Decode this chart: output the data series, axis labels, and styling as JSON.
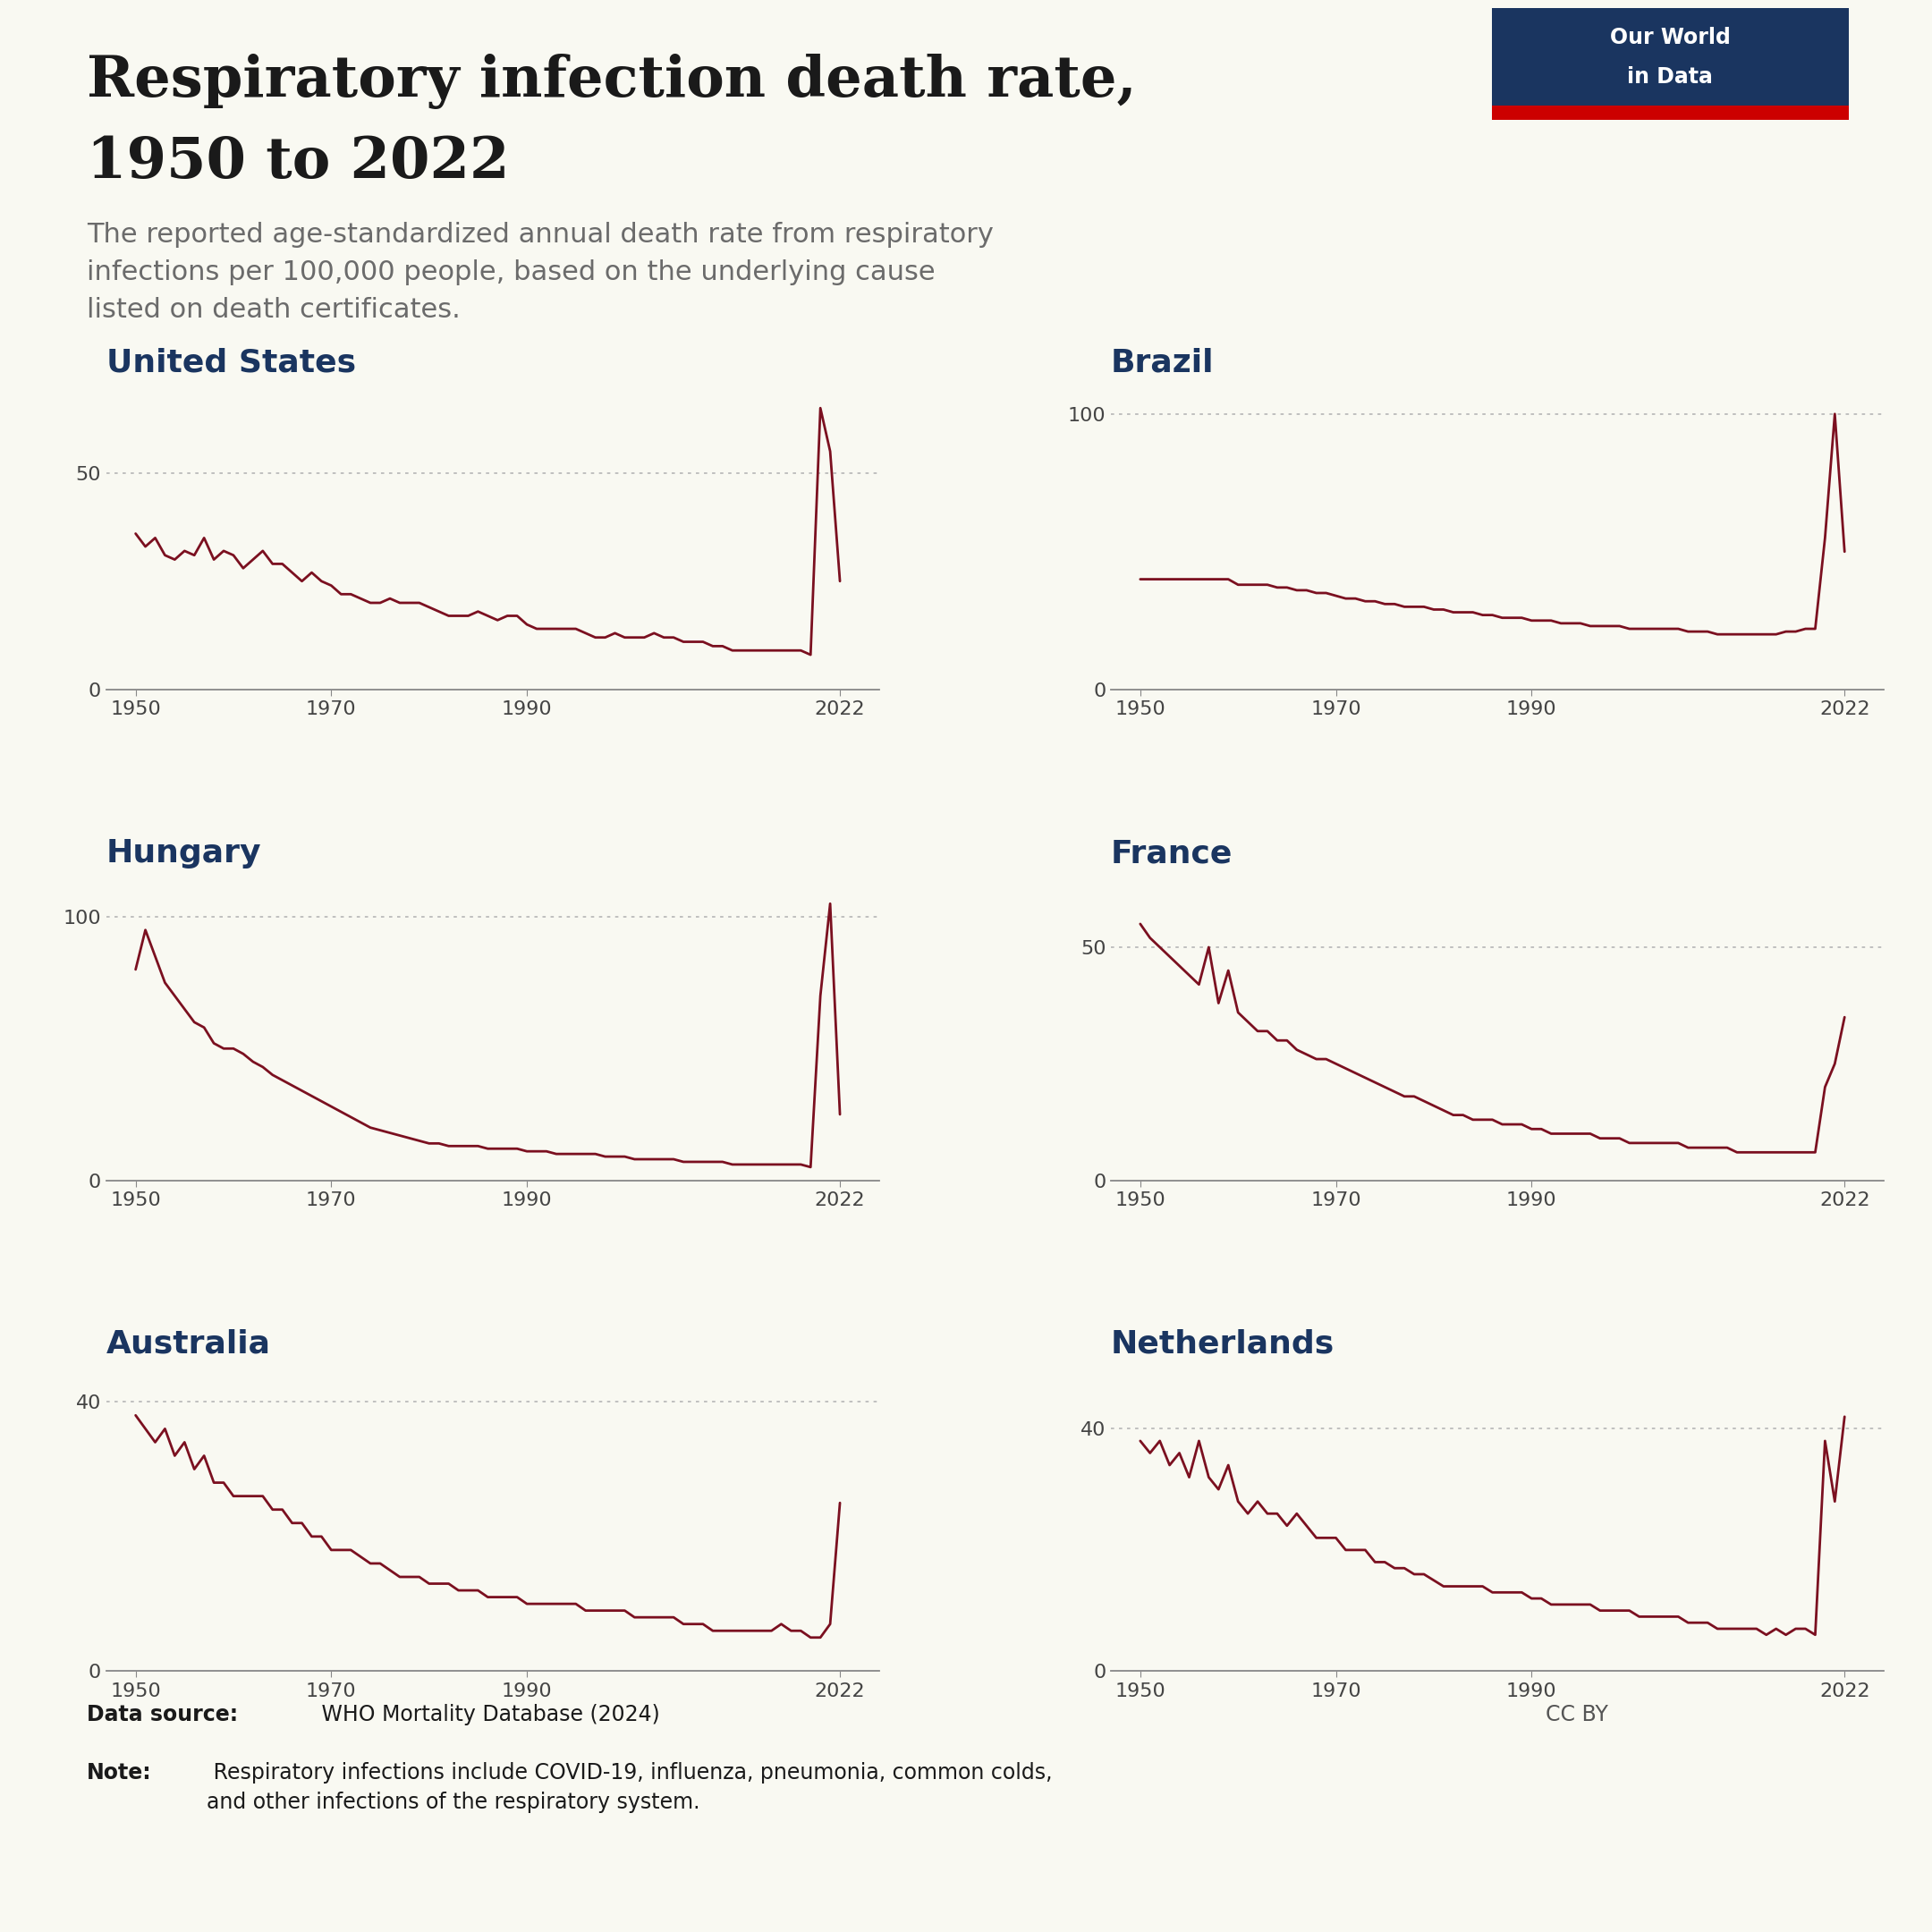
{
  "title_line1": "Respiratory infection death rate,",
  "title_line2": "1950 to 2022",
  "subtitle": "The reported age-standardized annual death rate from respiratory\ninfections per 100,000 people, based on the underlying cause\nlisted on death certificates.",
  "title_color": "#1a1a1a",
  "subtitle_color": "#6b6b6b",
  "country_title_color": "#1a3560",
  "line_color": "#7b1020",
  "axis_color": "#888888",
  "grid_color": "#bbbbbb",
  "background_color": "#f9f9f2",
  "owid_box_bg": "#1a3560",
  "owid_red_line": "#cc0000",
  "source_bold": "Data source:",
  "source_rest": " WHO Mortality Database (2024)",
  "note_bold": "Note:",
  "note_rest": " Respiratory infections include COVID-19, influenza, pneumonia, common colds,\nand other infections of the respiratory system.",
  "ccby_text": "CC BY",
  "countries": [
    "United States",
    "Brazil",
    "Hungary",
    "France",
    "Australia",
    "Netherlands"
  ],
  "us_data": {
    "years": [
      1950,
      1951,
      1952,
      1953,
      1954,
      1955,
      1956,
      1957,
      1958,
      1959,
      1960,
      1961,
      1962,
      1963,
      1964,
      1965,
      1966,
      1967,
      1968,
      1969,
      1970,
      1971,
      1972,
      1973,
      1974,
      1975,
      1976,
      1977,
      1978,
      1979,
      1980,
      1981,
      1982,
      1983,
      1984,
      1985,
      1986,
      1987,
      1988,
      1989,
      1990,
      1991,
      1992,
      1993,
      1994,
      1995,
      1996,
      1997,
      1998,
      1999,
      2000,
      2001,
      2002,
      2003,
      2004,
      2005,
      2006,
      2007,
      2008,
      2009,
      2010,
      2011,
      2012,
      2013,
      2014,
      2015,
      2016,
      2017,
      2018,
      2019,
      2020,
      2021,
      2022
    ],
    "values": [
      36,
      33,
      35,
      31,
      30,
      32,
      31,
      35,
      30,
      32,
      31,
      28,
      30,
      32,
      29,
      29,
      27,
      25,
      27,
      25,
      24,
      22,
      22,
      21,
      20,
      20,
      21,
      20,
      20,
      20,
      19,
      18,
      17,
      17,
      17,
      18,
      17,
      16,
      17,
      17,
      15,
      14,
      14,
      14,
      14,
      14,
      13,
      12,
      12,
      13,
      12,
      12,
      12,
      13,
      12,
      12,
      11,
      11,
      11,
      10,
      10,
      9,
      9,
      9,
      9,
      9,
      9,
      9,
      9,
      8,
      65,
      55,
      25
    ],
    "ylim": [
      0,
      70
    ],
    "yticks": [
      0,
      50
    ]
  },
  "brazil_data": {
    "years": [
      1950,
      1951,
      1952,
      1953,
      1954,
      1955,
      1956,
      1957,
      1958,
      1959,
      1960,
      1961,
      1962,
      1963,
      1964,
      1965,
      1966,
      1967,
      1968,
      1969,
      1970,
      1971,
      1972,
      1973,
      1974,
      1975,
      1976,
      1977,
      1978,
      1979,
      1980,
      1981,
      1982,
      1983,
      1984,
      1985,
      1986,
      1987,
      1988,
      1989,
      1990,
      1991,
      1992,
      1993,
      1994,
      1995,
      1996,
      1997,
      1998,
      1999,
      2000,
      2001,
      2002,
      2003,
      2004,
      2005,
      2006,
      2007,
      2008,
      2009,
      2010,
      2011,
      2012,
      2013,
      2014,
      2015,
      2016,
      2017,
      2018,
      2019,
      2020,
      2021,
      2022
    ],
    "values": [
      40,
      40,
      40,
      40,
      40,
      40,
      40,
      40,
      40,
      40,
      38,
      38,
      38,
      38,
      37,
      37,
      36,
      36,
      35,
      35,
      34,
      33,
      33,
      32,
      32,
      31,
      31,
      30,
      30,
      30,
      29,
      29,
      28,
      28,
      28,
      27,
      27,
      26,
      26,
      26,
      25,
      25,
      25,
      24,
      24,
      24,
      23,
      23,
      23,
      23,
      22,
      22,
      22,
      22,
      22,
      22,
      21,
      21,
      21,
      20,
      20,
      20,
      20,
      20,
      20,
      20,
      21,
      21,
      22,
      22,
      55,
      100,
      50
    ],
    "ylim": [
      0,
      110
    ],
    "yticks": [
      0,
      100
    ]
  },
  "hungary_data": {
    "years": [
      1950,
      1951,
      1952,
      1953,
      1954,
      1955,
      1956,
      1957,
      1958,
      1959,
      1960,
      1961,
      1962,
      1963,
      1964,
      1965,
      1966,
      1967,
      1968,
      1969,
      1970,
      1971,
      1972,
      1973,
      1974,
      1975,
      1976,
      1977,
      1978,
      1979,
      1980,
      1981,
      1982,
      1983,
      1984,
      1985,
      1986,
      1987,
      1988,
      1989,
      1990,
      1991,
      1992,
      1993,
      1994,
      1995,
      1996,
      1997,
      1998,
      1999,
      2000,
      2001,
      2002,
      2003,
      2004,
      2005,
      2006,
      2007,
      2008,
      2009,
      2010,
      2011,
      2012,
      2013,
      2014,
      2015,
      2016,
      2017,
      2018,
      2019,
      2020,
      2021,
      2022
    ],
    "values": [
      80,
      95,
      85,
      75,
      70,
      65,
      60,
      58,
      52,
      50,
      50,
      48,
      45,
      43,
      40,
      38,
      36,
      34,
      32,
      30,
      28,
      26,
      24,
      22,
      20,
      19,
      18,
      17,
      16,
      15,
      14,
      14,
      13,
      13,
      13,
      13,
      12,
      12,
      12,
      12,
      11,
      11,
      11,
      10,
      10,
      10,
      10,
      10,
      9,
      9,
      9,
      8,
      8,
      8,
      8,
      8,
      7,
      7,
      7,
      7,
      7,
      6,
      6,
      6,
      6,
      6,
      6,
      6,
      6,
      5,
      70,
      105,
      25
    ],
    "ylim": [
      0,
      115
    ],
    "yticks": [
      0,
      100
    ]
  },
  "france_data": {
    "years": [
      1950,
      1951,
      1952,
      1953,
      1954,
      1955,
      1956,
      1957,
      1958,
      1959,
      1960,
      1961,
      1962,
      1963,
      1964,
      1965,
      1966,
      1967,
      1968,
      1969,
      1970,
      1971,
      1972,
      1973,
      1974,
      1975,
      1976,
      1977,
      1978,
      1979,
      1980,
      1981,
      1982,
      1983,
      1984,
      1985,
      1986,
      1987,
      1988,
      1989,
      1990,
      1991,
      1992,
      1993,
      1994,
      1995,
      1996,
      1997,
      1998,
      1999,
      2000,
      2001,
      2002,
      2003,
      2004,
      2005,
      2006,
      2007,
      2008,
      2009,
      2010,
      2011,
      2012,
      2013,
      2014,
      2015,
      2016,
      2017,
      2018,
      2019,
      2020,
      2021,
      2022
    ],
    "values": [
      55,
      52,
      50,
      48,
      46,
      44,
      42,
      50,
      38,
      45,
      36,
      34,
      32,
      32,
      30,
      30,
      28,
      27,
      26,
      26,
      25,
      24,
      23,
      22,
      21,
      20,
      19,
      18,
      18,
      17,
      16,
      15,
      14,
      14,
      13,
      13,
      13,
      12,
      12,
      12,
      11,
      11,
      10,
      10,
      10,
      10,
      10,
      9,
      9,
      9,
      8,
      8,
      8,
      8,
      8,
      8,
      7,
      7,
      7,
      7,
      7,
      6,
      6,
      6,
      6,
      6,
      6,
      6,
      6,
      6,
      20,
      25,
      35
    ],
    "ylim": [
      0,
      65
    ],
    "yticks": [
      0,
      50
    ]
  },
  "australia_data": {
    "years": [
      1950,
      1951,
      1952,
      1953,
      1954,
      1955,
      1956,
      1957,
      1958,
      1959,
      1960,
      1961,
      1962,
      1963,
      1964,
      1965,
      1966,
      1967,
      1968,
      1969,
      1970,
      1971,
      1972,
      1973,
      1974,
      1975,
      1976,
      1977,
      1978,
      1979,
      1980,
      1981,
      1982,
      1983,
      1984,
      1985,
      1986,
      1987,
      1988,
      1989,
      1990,
      1991,
      1992,
      1993,
      1994,
      1995,
      1996,
      1997,
      1998,
      1999,
      2000,
      2001,
      2002,
      2003,
      2004,
      2005,
      2006,
      2007,
      2008,
      2009,
      2010,
      2011,
      2012,
      2013,
      2014,
      2015,
      2016,
      2017,
      2018,
      2019,
      2020,
      2021,
      2022
    ],
    "values": [
      38,
      36,
      34,
      36,
      32,
      34,
      30,
      32,
      28,
      28,
      26,
      26,
      26,
      26,
      24,
      24,
      22,
      22,
      20,
      20,
      18,
      18,
      18,
      17,
      16,
      16,
      15,
      14,
      14,
      14,
      13,
      13,
      13,
      12,
      12,
      12,
      11,
      11,
      11,
      11,
      10,
      10,
      10,
      10,
      10,
      10,
      9,
      9,
      9,
      9,
      9,
      8,
      8,
      8,
      8,
      8,
      7,
      7,
      7,
      6,
      6,
      6,
      6,
      6,
      6,
      6,
      7,
      6,
      6,
      5,
      5,
      7,
      25
    ],
    "ylim": [
      0,
      45
    ],
    "yticks": [
      0,
      40
    ]
  },
  "netherlands_data": {
    "years": [
      1950,
      1951,
      1952,
      1953,
      1954,
      1955,
      1956,
      1957,
      1958,
      1959,
      1960,
      1961,
      1962,
      1963,
      1964,
      1965,
      1966,
      1967,
      1968,
      1969,
      1970,
      1971,
      1972,
      1973,
      1974,
      1975,
      1976,
      1977,
      1978,
      1979,
      1980,
      1981,
      1982,
      1983,
      1984,
      1985,
      1986,
      1987,
      1988,
      1989,
      1990,
      1991,
      1992,
      1993,
      1994,
      1995,
      1996,
      1997,
      1998,
      1999,
      2000,
      2001,
      2002,
      2003,
      2004,
      2005,
      2006,
      2007,
      2008,
      2009,
      2010,
      2011,
      2012,
      2013,
      2014,
      2015,
      2016,
      2017,
      2018,
      2019,
      2020,
      2021,
      2022
    ],
    "values": [
      38,
      36,
      38,
      34,
      36,
      32,
      38,
      32,
      30,
      34,
      28,
      26,
      28,
      26,
      26,
      24,
      26,
      24,
      22,
      22,
      22,
      20,
      20,
      20,
      18,
      18,
      17,
      17,
      16,
      16,
      15,
      14,
      14,
      14,
      14,
      14,
      13,
      13,
      13,
      13,
      12,
      12,
      11,
      11,
      11,
      11,
      11,
      10,
      10,
      10,
      10,
      9,
      9,
      9,
      9,
      9,
      8,
      8,
      8,
      7,
      7,
      7,
      7,
      7,
      6,
      7,
      6,
      7,
      7,
      6,
      38,
      28,
      42
    ],
    "ylim": [
      0,
      50
    ],
    "yticks": [
      0,
      40
    ]
  }
}
